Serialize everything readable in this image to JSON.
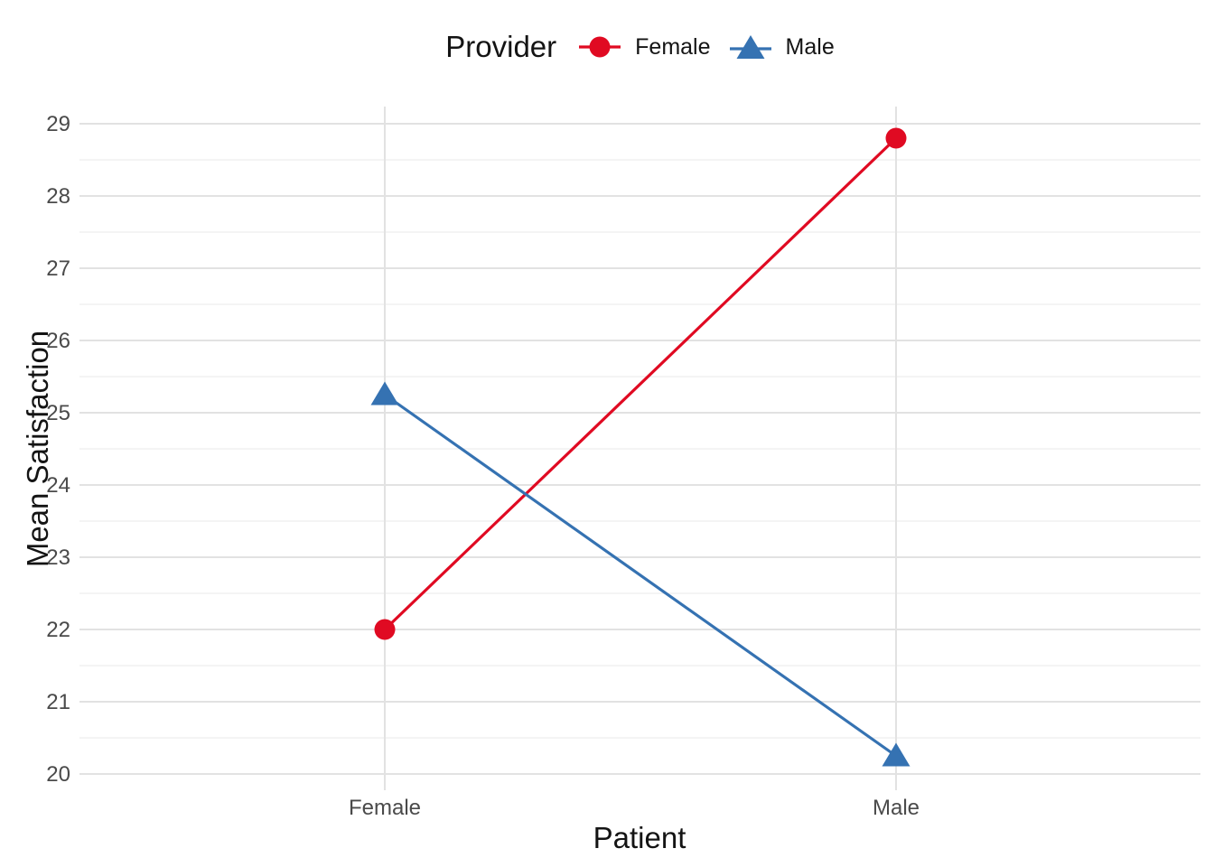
{
  "chart_data": {
    "type": "line",
    "title": "",
    "legend": {
      "title": "Provider",
      "position": "top",
      "items": [
        "Female",
        "Male"
      ]
    },
    "xlabel": "Patient",
    "ylabel": "Mean Satisfaction",
    "categories": [
      "Female",
      "Male"
    ],
    "series": [
      {
        "name": "Female",
        "marker": "circle",
        "color": "#E00A22",
        "values": [
          22.0,
          28.8
        ]
      },
      {
        "name": "Male",
        "marker": "triangle",
        "color": "#3572B2",
        "values": [
          25.25,
          20.25
        ]
      }
    ],
    "y_ticks": [
      20,
      21,
      22,
      23,
      24,
      25,
      26,
      27,
      28,
      29
    ],
    "ylim": [
      19.78,
      29.24
    ],
    "grid": {
      "major": true,
      "minor": true,
      "vertical_at_categories": true
    }
  },
  "colors": {
    "background": "#FFFFFF",
    "grid_major": "#E2E2E2",
    "grid_minor": "#EDEDED",
    "tick_label": "#4A4A4A",
    "title_text": "#141414"
  }
}
